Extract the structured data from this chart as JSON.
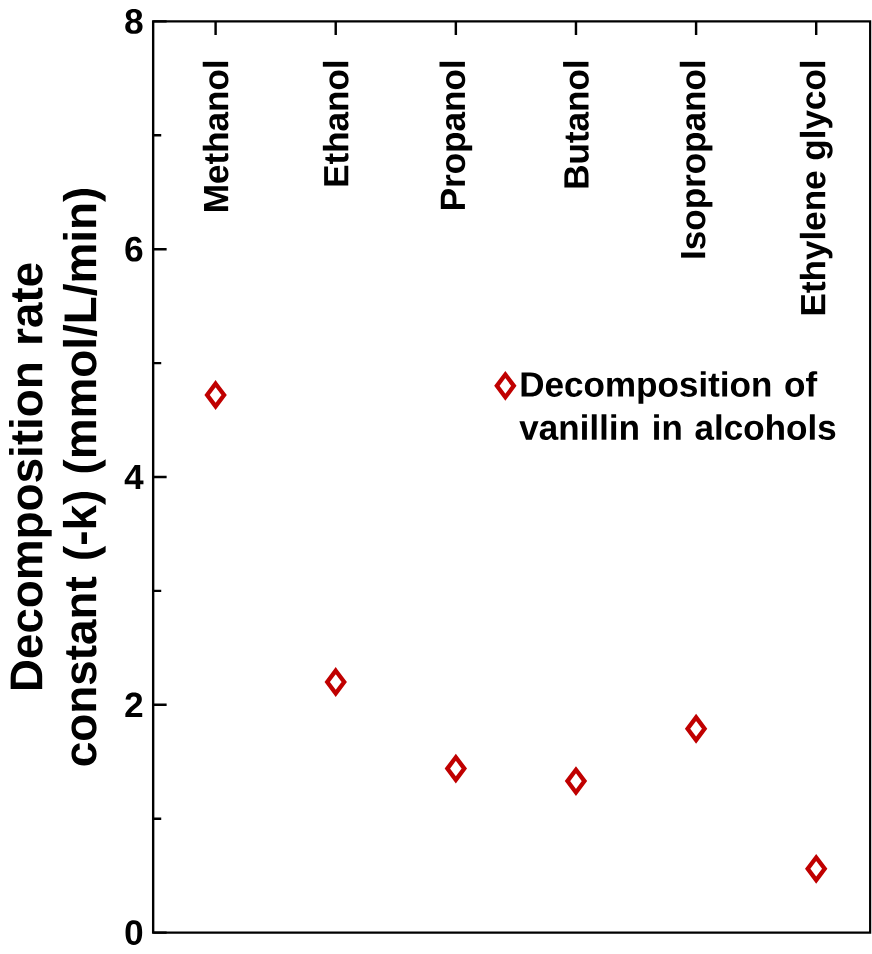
{
  "chart_data": {
    "type": "scatter",
    "categories": [
      "Methanol",
      "Ethanol",
      "Propanol",
      "Butanol",
      "Isopropanol",
      "Ethylene glycol"
    ],
    "series": [
      {
        "name": "Decomposition of vanillin in alcohols",
        "color": "#c00000",
        "values": [
          4.72,
          2.2,
          1.44,
          1.33,
          1.79,
          0.56
        ]
      }
    ],
    "ylabel": "Decomposition rate constant (-k) (mmol/L/min)",
    "ylim": [
      0,
      8
    ],
    "yticks": [
      0,
      2,
      4,
      6,
      8
    ],
    "marker": "diamond",
    "legend": "right",
    "grid": false
  }
}
